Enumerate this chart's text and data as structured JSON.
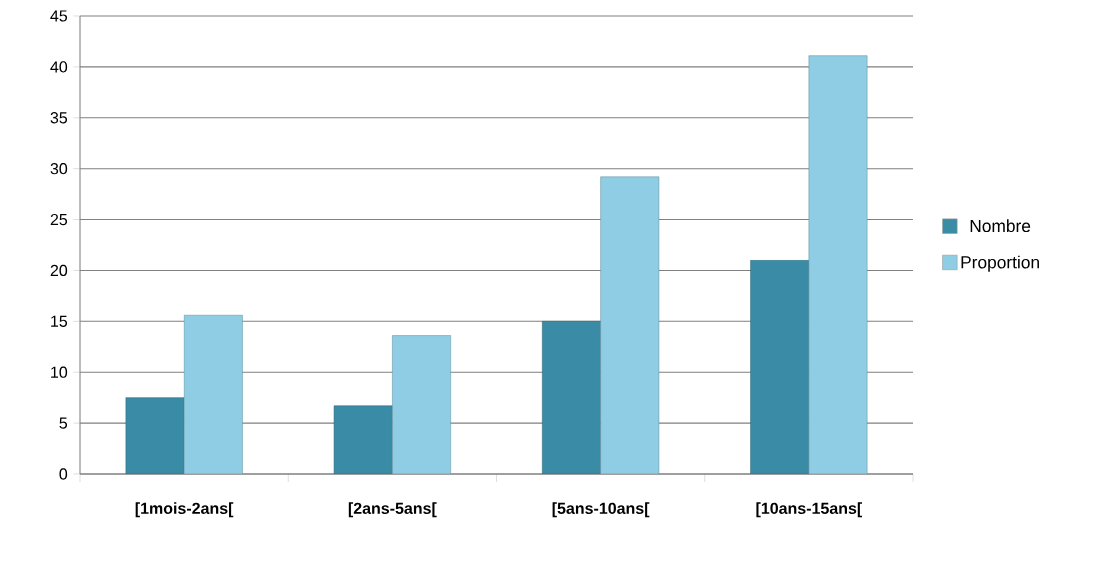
{
  "chart_data": {
    "type": "bar",
    "categories": [
      "[1mois-2ans[",
      "[2ans-5ans[",
      "[5ans-10ans[",
      "[10ans-15ans["
    ],
    "series": [
      {
        "name": "Nombre",
        "color": "#3a8ca6",
        "values": [
          7.5,
          6.7,
          15,
          21
        ]
      },
      {
        "name": "Proportion",
        "color": "#8ecde3",
        "values": [
          15.6,
          13.6,
          29.2,
          41.1
        ]
      }
    ],
    "ylim": [
      0,
      45
    ],
    "yticks": [
      0,
      5,
      10,
      15,
      20,
      25,
      30,
      35,
      40,
      45
    ],
    "grid": "y",
    "legend": "right"
  }
}
